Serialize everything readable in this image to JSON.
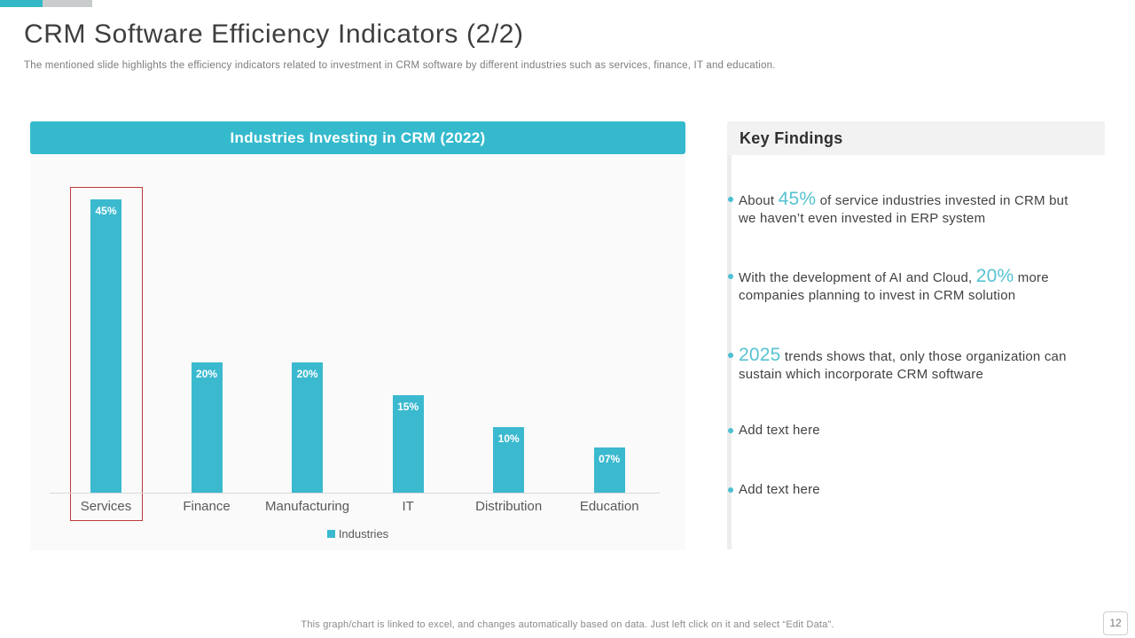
{
  "slide": {
    "title": "CRM Software Efficiency Indicators (2/2)",
    "subtitle": "The mentioned slide highlights the efficiency indicators related to investment in CRM software by different industries such as services, finance, IT and education.",
    "footer_note": "This graph/chart is linked to excel, and changes automatically based on data. Just left click on it and select “Edit Data”.",
    "page_number": "12"
  },
  "chart_data": {
    "type": "bar",
    "title": "Industries Investing in CRM (2022)",
    "categories": [
      "Services",
      "Finance",
      "Manufacturing",
      "IT",
      "Distribution",
      "Education"
    ],
    "values": [
      45,
      20,
      20,
      15,
      10,
      7
    ],
    "bar_labels": [
      "45%",
      "20%",
      "20%",
      "15%",
      "10%",
      "07%"
    ],
    "xlabel": "",
    "ylabel": "",
    "ylim": [
      0,
      50
    ],
    "grid": false,
    "legend_label": "Industries",
    "legend_position": "bottom",
    "bar_color": "#3bb9cf",
    "highlight_category": "Services",
    "highlight_color": "#c0383b"
  },
  "key_findings": {
    "title": "Key Findings",
    "bullets": [
      {
        "segments": [
          {
            "text": "About ",
            "accent": false
          },
          {
            "text": "45%",
            "accent": true
          },
          {
            "text": " of service industries invested in CRM but we haven’t even invested in ERP system",
            "accent": false
          }
        ]
      },
      {
        "segments": [
          {
            "text": "With the development of AI and Cloud, ",
            "accent": false
          },
          {
            "text": "20%",
            "accent": true
          },
          {
            "text": " more companies planning to invest in CRM solution",
            "accent": false
          }
        ]
      },
      {
        "segments": [
          {
            "text": "2025",
            "accent": true
          },
          {
            "text": " trends shows that, only those organization can sustain which incorporate CRM software",
            "accent": false
          }
        ]
      },
      {
        "segments": [
          {
            "text": "Add text here",
            "accent": false
          }
        ]
      },
      {
        "segments": [
          {
            "text": "Add text here",
            "accent": false
          }
        ]
      }
    ]
  },
  "colors": {
    "accent_teal": "#3bb9cf",
    "chart_header_teal": "#35bacd",
    "accent_text_teal": "#57c2d2",
    "highlight_red": "#c0383b",
    "header_gray": "#f2f2f2"
  }
}
